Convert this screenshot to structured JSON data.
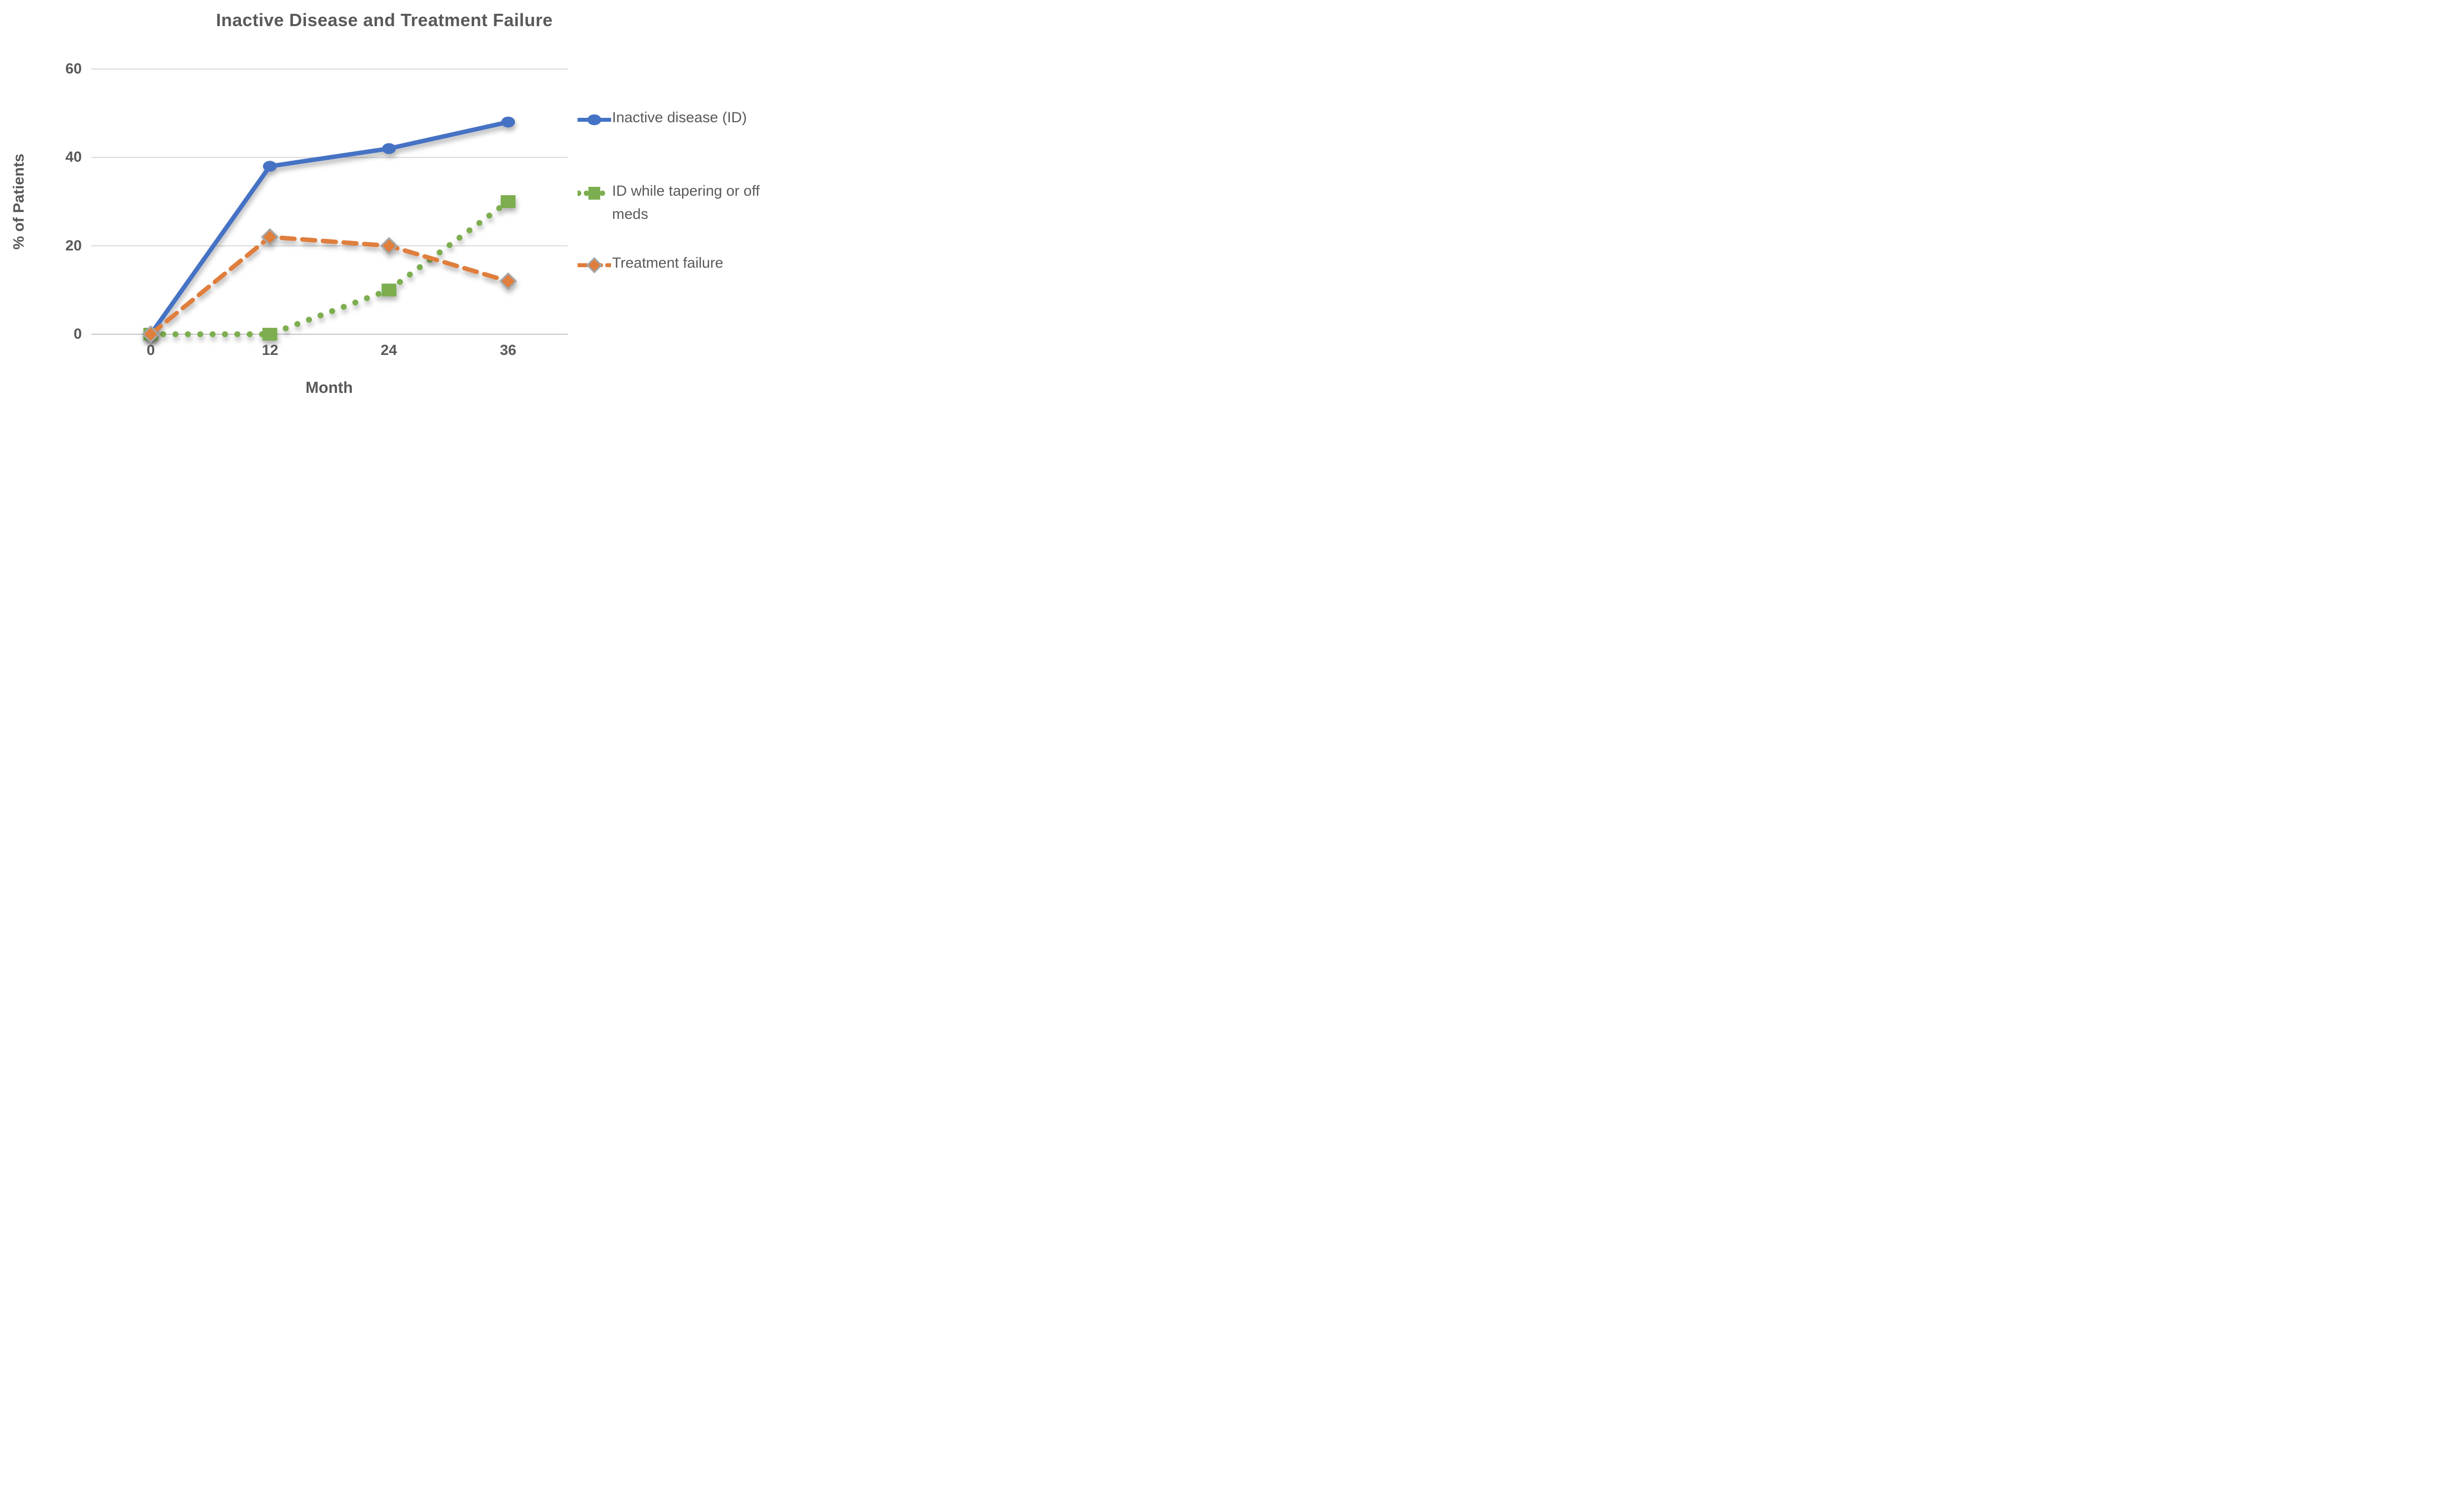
{
  "title": "Inactive Disease and Treatment Failure",
  "chart_data": {
    "type": "line",
    "title": "Inactive Disease and Treatment Failure",
    "x": [
      0,
      12,
      24,
      36
    ],
    "x_tick_labels": [
      "0",
      "12",
      "24",
      "36"
    ],
    "y_tick_labels_top_to_bottom": [
      "60",
      "40",
      "20",
      "0"
    ],
    "yticks": [
      0,
      20,
      40,
      60
    ],
    "xlabel": "Month",
    "ylabel": "% of Patients",
    "ylim": [
      0,
      60
    ],
    "grid": true,
    "legend_position": "right",
    "series": [
      {
        "name": "Inactive disease (ID)",
        "values": [
          0,
          38,
          42,
          48
        ],
        "color": "#4472C4",
        "line_style": "solid",
        "marker": "circle"
      },
      {
        "name": "ID while tapering or off meds",
        "values": [
          0,
          0,
          10,
          30
        ],
        "color": "#7CAE4F",
        "line_style": "dotted",
        "marker": "square"
      },
      {
        "name": "Treatment failure",
        "values": [
          0,
          22,
          20,
          12
        ],
        "color": "#DF7E3C",
        "line_style": "dashed",
        "marker": "diamond",
        "marker_stroke": "#A6A6A6"
      }
    ]
  },
  "colors": {
    "text": "#595959",
    "gridline": "#D6D6D6",
    "baseline": "#C3C3C3",
    "background": "#FFFFFF"
  }
}
